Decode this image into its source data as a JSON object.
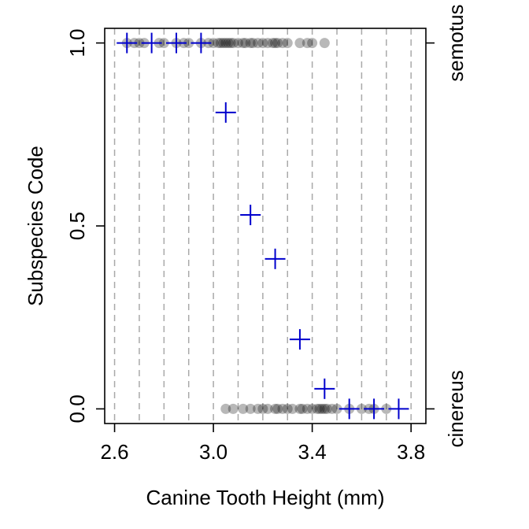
{
  "chart_data": {
    "type": "scatter",
    "title": "",
    "xlabel": "Canine Tooth Height (mm)",
    "ylabel": "Subspecies Code",
    "xlim": [
      2.56,
      3.86
    ],
    "ylim": [
      -0.04,
      1.04
    ],
    "x_ticks": [
      2.6,
      3.0,
      3.4,
      3.8
    ],
    "x_tick_labels": [
      "2.6",
      "3.0",
      "3.4",
      "3.8"
    ],
    "y_ticks": [
      0.0,
      0.5,
      1.0
    ],
    "y_tick_labels": [
      "0.0",
      "0.5",
      "1.0"
    ],
    "right_labels": [
      {
        "text": "semotus",
        "y": 1.0
      },
      {
        "text": "cinereus",
        "y": 0.0
      }
    ],
    "group_breaks": [
      2.6,
      2.7,
      2.8,
      2.9,
      3.0,
      3.1,
      3.2,
      3.3,
      3.4,
      3.5,
      3.6,
      3.7,
      3.8
    ],
    "grid": "vertical dashed at group breaks",
    "legend": "none",
    "colors": {
      "points": "#000000",
      "means": "#0000cd",
      "grid": "#a9a9a9"
    },
    "series": [
      {
        "role": "semotus observations",
        "y": 1.0,
        "x": [
          2.65,
          2.68,
          2.7,
          2.72,
          2.78,
          2.8,
          2.85,
          2.88,
          2.9,
          2.95,
          2.98,
          3.0,
          3.02,
          3.03,
          3.04,
          3.05,
          3.06,
          3.07,
          3.08,
          3.1,
          3.12,
          3.13,
          3.15,
          3.16,
          3.18,
          3.2,
          3.22,
          3.24,
          3.25,
          3.26,
          3.28,
          3.3,
          3.35,
          3.38,
          3.4,
          3.45
        ]
      },
      {
        "role": "cinereus observations",
        "y": 0.0,
        "x": [
          3.05,
          3.08,
          3.12,
          3.15,
          3.18,
          3.2,
          3.22,
          3.25,
          3.26,
          3.28,
          3.3,
          3.32,
          3.35,
          3.36,
          3.38,
          3.4,
          3.42,
          3.43,
          3.44,
          3.45,
          3.46,
          3.48,
          3.5,
          3.55,
          3.6,
          3.63,
          3.65,
          3.7
        ]
      },
      {
        "role": "group proportion",
        "marker": "plus",
        "x": [
          2.65,
          2.75,
          2.85,
          2.95,
          3.05,
          3.15,
          3.25,
          3.35,
          3.45,
          3.55,
          3.65,
          3.75
        ],
        "y": [
          1.0,
          1.0,
          1.0,
          1.0,
          0.81,
          0.53,
          0.41,
          0.19,
          0.055,
          0.0,
          0.0,
          0.0
        ]
      }
    ]
  }
}
